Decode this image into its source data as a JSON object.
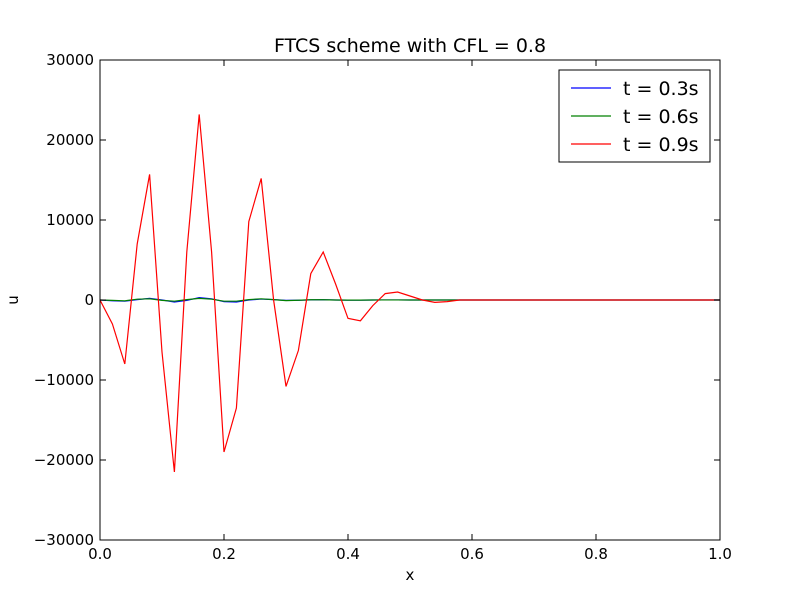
{
  "chart_data": {
    "type": "line",
    "title": "FTCS scheme with CFL = 0.8",
    "xlabel": "x",
    "ylabel": "u",
    "xlim": [
      0.0,
      1.0
    ],
    "ylim": [
      -30000,
      30000
    ],
    "xticks": [
      0.0,
      0.2,
      0.4,
      0.6,
      0.8,
      1.0
    ],
    "xtick_labels": [
      "0.0",
      "0.2",
      "0.4",
      "0.6",
      "0.8",
      "1.0"
    ],
    "yticks": [
      -30000,
      -20000,
      -10000,
      0,
      10000,
      20000,
      30000
    ],
    "ytick_labels": [
      "−30000",
      "−20000",
      "−10000",
      "0",
      "10000",
      "20000",
      "30000"
    ],
    "grid": false,
    "legend_position": "top-right",
    "x": [
      0.0,
      0.02,
      0.04,
      0.06,
      0.08,
      0.1,
      0.12,
      0.14,
      0.16,
      0.18,
      0.2,
      0.22,
      0.24,
      0.26,
      0.28,
      0.3,
      0.32,
      0.34,
      0.36,
      0.38,
      0.4,
      0.42,
      0.44,
      0.46,
      0.48,
      0.5,
      0.52,
      0.54,
      0.56,
      0.58,
      0.6,
      0.62,
      0.64,
      0.66,
      0.68,
      0.7,
      0.72,
      0.74,
      0.76,
      0.78,
      0.8,
      0.82,
      0.84,
      0.86,
      0.88,
      0.9,
      0.92,
      0.94,
      0.96,
      0.98,
      1.0
    ],
    "series": [
      {
        "name": "t = 0.3s",
        "color": "#0000ff",
        "values": [
          0,
          -100,
          -150,
          50,
          200,
          0,
          -250,
          -50,
          300,
          150,
          -200,
          -250,
          0,
          120,
          50,
          -50,
          -30,
          20,
          30,
          0,
          -20,
          -20,
          0,
          10,
          10,
          0,
          0,
          0,
          0,
          0,
          0,
          0,
          0,
          0,
          0,
          0,
          0,
          0,
          0,
          0,
          0,
          0,
          0,
          0,
          0,
          0,
          0,
          0,
          0,
          0,
          0
        ]
      },
      {
        "name": "t = 0.6s",
        "color": "#008000",
        "values": [
          0,
          -50,
          -100,
          100,
          150,
          -50,
          -150,
          50,
          200,
          100,
          -150,
          -150,
          50,
          150,
          50,
          -80,
          -30,
          30,
          30,
          0,
          -20,
          -20,
          0,
          10,
          10,
          0,
          0,
          0,
          0,
          0,
          0,
          0,
          0,
          0,
          0,
          0,
          0,
          0,
          0,
          0,
          0,
          0,
          0,
          0,
          0,
          0,
          0,
          0,
          0,
          0,
          0
        ]
      },
      {
        "name": "t = 0.9s",
        "color": "#ff0000",
        "values": [
          0,
          -3000,
          -8000,
          7000,
          15700,
          -6500,
          -21500,
          6000,
          23200,
          6000,
          -19000,
          -13500,
          9800,
          15200,
          0,
          -10800,
          -6300,
          3300,
          6000,
          2000,
          -2300,
          -2600,
          -700,
          800,
          1000,
          500,
          0,
          -300,
          -200,
          0,
          0,
          0,
          0,
          0,
          0,
          0,
          0,
          0,
          0,
          0,
          0,
          0,
          0,
          0,
          0,
          0,
          0,
          0,
          0,
          0,
          0
        ]
      }
    ]
  }
}
